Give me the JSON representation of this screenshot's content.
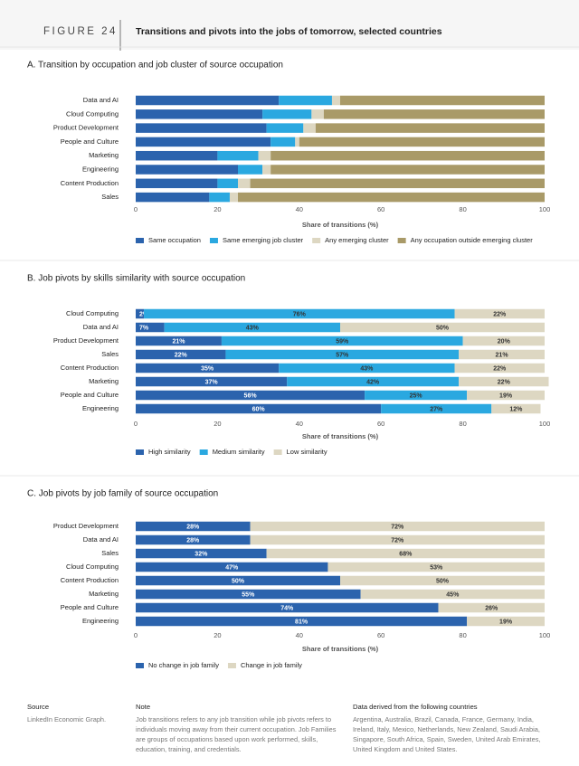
{
  "figure_label": "FIGURE 24",
  "title": "Transitions and pivots into the jobs of tomorrow, selected countries",
  "chart_data": [
    {
      "type": "bar",
      "title": "A. Transition by occupation and job cluster of source occupation",
      "categories": [
        "Data and AI",
        "Cloud Computing",
        "Product Development",
        "People and Culture",
        "Marketing",
        "Engineering",
        "Content Production",
        "Sales"
      ],
      "series": [
        {
          "name": "Same occupation",
          "color": "#2b63ad",
          "values": [
            35,
            31,
            32,
            33,
            20,
            25,
            20,
            18
          ]
        },
        {
          "name": "Same emerging job cluster",
          "color": "#2aa8e0",
          "values": [
            13,
            12,
            9,
            6,
            10,
            6,
            5,
            5
          ]
        },
        {
          "name": "Any emerging cluster",
          "color": "#ddd7c2",
          "values": [
            2,
            3,
            3,
            1,
            3,
            2,
            3,
            2
          ]
        },
        {
          "name": "Any occupation outside emerging cluster",
          "color": "#a99a68",
          "values": [
            50,
            54,
            56,
            60,
            67,
            67,
            72,
            75
          ]
        }
      ],
      "xlim": [
        0,
        100
      ],
      "xticks": [
        0,
        20,
        40,
        60,
        80,
        100
      ],
      "x_label": "Share of transitions (%)"
    },
    {
      "type": "bar",
      "title": "B. Job pivots by skills similarity with source occupation",
      "categories": [
        "Cloud Computing",
        "Data and AI",
        "Product Development",
        "Sales",
        "Content Production",
        "Marketing",
        "People and Culture",
        "Engineering"
      ],
      "series": [
        {
          "name": "High similarity",
          "color": "#2b63ad",
          "values": [
            2,
            7,
            21,
            22,
            35,
            37,
            56,
            60
          ],
          "value_labels": [
            "2%",
            "7%",
            "21%",
            "22%",
            "35%",
            "37%",
            "56%",
            "60%"
          ]
        },
        {
          "name": "Medium similarity",
          "color": "#2aa8e0",
          "values": [
            76,
            43,
            59,
            57,
            43,
            42,
            25,
            27
          ],
          "value_labels": [
            "76%",
            "43%",
            "59%",
            "57%",
            "43%",
            "42%",
            "25%",
            "27%"
          ]
        },
        {
          "name": "Low similarity",
          "color": "#ddd7c2",
          "values": [
            22,
            50,
            20,
            21,
            22,
            22,
            19,
            12
          ],
          "value_labels": [
            "22%",
            "50%",
            "20%",
            "21%",
            "22%",
            "22%",
            "19%",
            "12%"
          ]
        }
      ],
      "xlim": [
        0,
        100
      ],
      "xticks": [
        0,
        20,
        40,
        60,
        80,
        100
      ],
      "x_label": "Share of transitions (%)"
    },
    {
      "type": "bar",
      "title": "C. Job pivots by job family of source occupation",
      "categories": [
        "Product Development",
        "Data and AI",
        "Sales",
        "Cloud Computing",
        "Content Production",
        "Marketing",
        "People and Culture",
        "Engineering"
      ],
      "series": [
        {
          "name": "No change in job family",
          "color": "#2b63ad",
          "values": [
            28,
            28,
            32,
            47,
            50,
            55,
            74,
            81
          ],
          "value_labels": [
            "28%",
            "28%",
            "32%",
            "47%",
            "50%",
            "55%",
            "74%",
            "81%"
          ]
        },
        {
          "name": "Change in job family",
          "color": "#ddd7c2",
          "values": [
            72,
            72,
            68,
            53,
            50,
            45,
            26,
            19
          ],
          "value_labels": [
            "72%",
            "72%",
            "68%",
            "53%",
            "50%",
            "45%",
            "26%",
            "19%"
          ]
        }
      ],
      "xlim": [
        0,
        100
      ],
      "xticks": [
        0,
        20,
        40,
        60,
        80,
        100
      ],
      "x_label": "Share of transitions (%)"
    }
  ],
  "footer": {
    "source_heading": "Source",
    "source": "LinkedIn Economic Graph.",
    "note_heading": "Note",
    "note": "Job transitions refers to any job transition while job pivots refers to individuals moving away from their current occupation. Job Families are groups of occupations based upon work performed, skills, education, training, and credentials.",
    "countries_heading": "Data derived from the following countries",
    "countries": "Argentina, Australia, Brazil, Canada, France, Germany, India, Ireland, Italy, Mexico, Netherlands, New Zealand, Saudi Arabia, Singapore, South Africa, Spain, Sweden, United Arab Emirates, United Kingdom and United States."
  }
}
